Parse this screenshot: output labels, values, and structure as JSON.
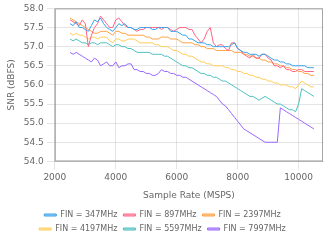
{
  "chart_data": {
    "type": "line",
    "xlabel": "Sample Rate (MSPS)",
    "ylabel": "SNR (dBFS)",
    "xlim": [
      2000,
      10800
    ],
    "ylim": [
      54,
      58
    ],
    "xticks": [
      2000,
      4000,
      6000,
      8000,
      10000
    ],
    "yticks": [
      {
        "value": 54,
        "label": "54.0"
      },
      {
        "value": 54.5,
        "label": "54.5"
      },
      {
        "value": 55,
        "label": "55.0"
      },
      {
        "value": 55.5,
        "label": "55.5"
      },
      {
        "value": 56,
        "label": "56.0"
      },
      {
        "value": 56.5,
        "label": "56.5"
      },
      {
        "value": 57,
        "label": "57.0"
      },
      {
        "value": 57.5,
        "label": "57.5"
      },
      {
        "value": 58,
        "label": "58.0"
      }
    ],
    "grid": true,
    "legend": "bottom",
    "x": [
      2500,
      2600,
      2700,
      2800,
      2900,
      3000,
      3100,
      3200,
      3300,
      3400,
      3500,
      3600,
      3700,
      3800,
      3900,
      4000,
      4100,
      4200,
      4300,
      4400,
      4500,
      4600,
      4700,
      4800,
      4900,
      5000,
      5100,
      5200,
      5300,
      5400,
      5500,
      5600,
      5700,
      5800,
      5900,
      6000,
      6100,
      6200,
      6300,
      6400,
      6500,
      6600,
      6700,
      6800,
      6900,
      7000,
      7100,
      7200,
      7300,
      7400,
      7500,
      7600,
      7700,
      7800,
      7900,
      8000,
      8100,
      8200,
      8300,
      8400,
      8500,
      8600,
      8700,
      8800,
      8900,
      9000,
      9100,
      9200,
      9300,
      9400,
      9500,
      9600,
      9700,
      9800,
      9900,
      10000,
      10100,
      10200,
      10300,
      10400,
      10500
    ],
    "series": [
      {
        "name": "FIN = 347MHz",
        "values": [
          57.6,
          57.55,
          57.65,
          57.5,
          57.5,
          57.45,
          57.4,
          57.55,
          57.7,
          57.65,
          57.75,
          57.6,
          57.5,
          57.45,
          57.4,
          57.5,
          57.6,
          57.55,
          57.6,
          57.5,
          57.5,
          57.45,
          57.45,
          57.5,
          57.5,
          57.5,
          57.5,
          57.45,
          57.45,
          57.5,
          57.5,
          57.5,
          57.5,
          57.4,
          57.4,
          57.4,
          57.35,
          57.3,
          57.3,
          57.2,
          57.2,
          57.15,
          57.1,
          57.1,
          57.1,
          57.05,
          57.05,
          57.0,
          57.0,
          57.0,
          57.0,
          57.0,
          57.0,
          57.05,
          57.1,
          56.95,
          56.9,
          56.85,
          56.85,
          56.8,
          56.8,
          56.8,
          56.75,
          56.8,
          56.8,
          56.75,
          56.7,
          56.65,
          56.65,
          56.6,
          56.6,
          56.55,
          56.55,
          56.5,
          56.5,
          56.5,
          56.5,
          56.5,
          56.45,
          56.45,
          56.45
        ]
      },
      {
        "name": "FIN = 897MHz",
        "values": [
          57.7,
          57.65,
          57.6,
          57.55,
          57.7,
          57.6,
          57.0,
          57.3,
          57.5,
          57.6,
          57.8,
          57.7,
          57.6,
          57.5,
          57.5,
          57.7,
          57.75,
          57.65,
          57.55,
          57.5,
          57.5,
          57.45,
          57.4,
          57.45,
          57.45,
          57.5,
          57.5,
          57.5,
          57.5,
          57.5,
          57.45,
          57.5,
          57.5,
          57.45,
          57.4,
          57.45,
          57.5,
          57.5,
          57.5,
          57.45,
          57.45,
          57.3,
          57.2,
          57.1,
          57.2,
          57.4,
          57.5,
          57.1,
          57.0,
          57.05,
          57.05,
          56.95,
          56.9,
          57.1,
          57.1,
          56.95,
          56.9,
          56.8,
          56.75,
          56.7,
          56.8,
          56.7,
          56.7,
          56.8,
          56.8,
          56.7,
          56.65,
          56.5,
          56.5,
          56.45,
          56.5,
          56.4,
          56.4,
          56.35,
          56.35,
          56.4,
          56.4,
          56.35,
          56.35,
          56.35,
          56.35
        ]
      },
      {
        "name": "FIN = 2397MHz",
        "values": [
          57.75,
          57.7,
          57.65,
          57.6,
          57.55,
          57.5,
          57.45,
          57.4,
          57.35,
          57.35,
          57.4,
          57.4,
          57.4,
          57.35,
          57.3,
          57.4,
          57.4,
          57.35,
          57.35,
          57.3,
          57.3,
          57.3,
          57.3,
          57.3,
          57.3,
          57.25,
          57.25,
          57.2,
          57.2,
          57.2,
          57.25,
          57.25,
          57.25,
          57.2,
          57.2,
          57.2,
          57.15,
          57.1,
          57.1,
          57.1,
          57.1,
          57.05,
          57.05,
          57.0,
          57.0,
          56.95,
          56.95,
          56.95,
          56.9,
          56.9,
          56.9,
          56.9,
          56.9,
          56.9,
          56.85,
          56.85,
          56.85,
          56.8,
          56.8,
          56.75,
          56.75,
          56.7,
          56.7,
          56.65,
          56.65,
          56.6,
          56.6,
          56.55,
          56.55,
          56.5,
          56.5,
          56.45,
          56.45,
          56.4,
          56.4,
          56.35,
          56.35,
          56.3,
          56.3,
          56.25,
          56.25
        ]
      },
      {
        "name": "FIN = 4197MHz",
        "values": [
          57.35,
          57.3,
          57.35,
          57.3,
          57.3,
          57.25,
          57.2,
          57.25,
          57.25,
          57.2,
          57.25,
          57.25,
          57.25,
          57.15,
          57.1,
          57.2,
          57.2,
          57.15,
          57.15,
          57.2,
          57.2,
          57.2,
          57.15,
          57.1,
          57.1,
          57.1,
          57.1,
          57.1,
          57.05,
          57.05,
          57.0,
          57.0,
          57.0,
          56.95,
          56.9,
          56.9,
          56.85,
          56.8,
          56.8,
          56.75,
          56.75,
          56.7,
          56.65,
          56.6,
          56.6,
          56.55,
          56.55,
          56.5,
          56.5,
          56.5,
          56.5,
          56.45,
          56.45,
          56.4,
          56.4,
          56.35,
          56.35,
          56.3,
          56.3,
          56.25,
          56.25,
          56.2,
          56.2,
          56.15,
          56.15,
          56.1,
          56.1,
          56.05,
          56.05,
          56.0,
          56.0,
          56.0,
          55.95,
          55.95,
          55.9,
          56.0,
          56.1,
          56.05,
          56.0,
          55.95,
          55.95
        ]
      },
      {
        "name": "FIN = 5597MHz",
        "values": [
          57.2,
          57.15,
          57.2,
          57.15,
          57.1,
          57.1,
          57.05,
          57.1,
          57.1,
          57.05,
          57.1,
          57.1,
          57.1,
          57.05,
          57.0,
          57.05,
          57.05,
          57.0,
          57.0,
          56.95,
          56.95,
          56.9,
          56.85,
          56.85,
          56.85,
          56.85,
          56.85,
          56.8,
          56.8,
          56.8,
          56.8,
          56.75,
          56.75,
          56.7,
          56.65,
          56.6,
          56.55,
          56.5,
          56.5,
          56.45,
          56.45,
          56.4,
          56.35,
          56.3,
          56.3,
          56.25,
          56.25,
          56.2,
          56.2,
          56.15,
          56.1,
          56.1,
          56.05,
          56.0,
          55.95,
          55.9,
          55.85,
          55.8,
          55.75,
          55.7,
          55.7,
          55.65,
          55.6,
          55.65,
          55.7,
          55.65,
          55.6,
          55.55,
          55.5,
          55.5,
          55.45,
          55.4,
          55.35,
          55.35,
          55.3,
          55.5,
          55.9,
          55.85,
          55.8,
          55.75,
          55.7
        ]
      },
      {
        "name": "FIN = 7997MHz",
        "values": [
          56.85,
          56.8,
          56.85,
          56.8,
          56.75,
          56.7,
          56.65,
          56.6,
          56.7,
          56.65,
          56.5,
          56.55,
          56.6,
          56.5,
          56.5,
          56.6,
          56.45,
          56.5,
          56.5,
          56.55,
          56.55,
          56.4,
          56.4,
          56.35,
          56.35,
          56.3,
          56.3,
          56.25,
          56.25,
          56.3,
          56.4,
          56.35,
          56.35,
          56.3,
          56.3,
          56.25,
          56.25,
          56.2,
          56.2,
          56.15,
          56.1,
          56.05,
          56.0,
          55.95,
          55.9,
          55.85,
          55.8,
          55.75,
          55.7,
          55.6,
          55.5,
          55.45,
          55.35,
          55.25,
          55.15,
          55.05,
          54.95,
          54.85,
          54.8,
          54.75,
          54.7,
          54.65,
          54.6,
          54.55,
          54.5,
          54.5,
          54.5,
          54.5,
          54.5,
          55.4,
          55.35,
          55.3,
          55.25,
          55.2,
          55.15,
          55.1,
          55.05,
          55.0,
          54.95,
          54.9,
          54.85
        ]
      }
    ]
  }
}
